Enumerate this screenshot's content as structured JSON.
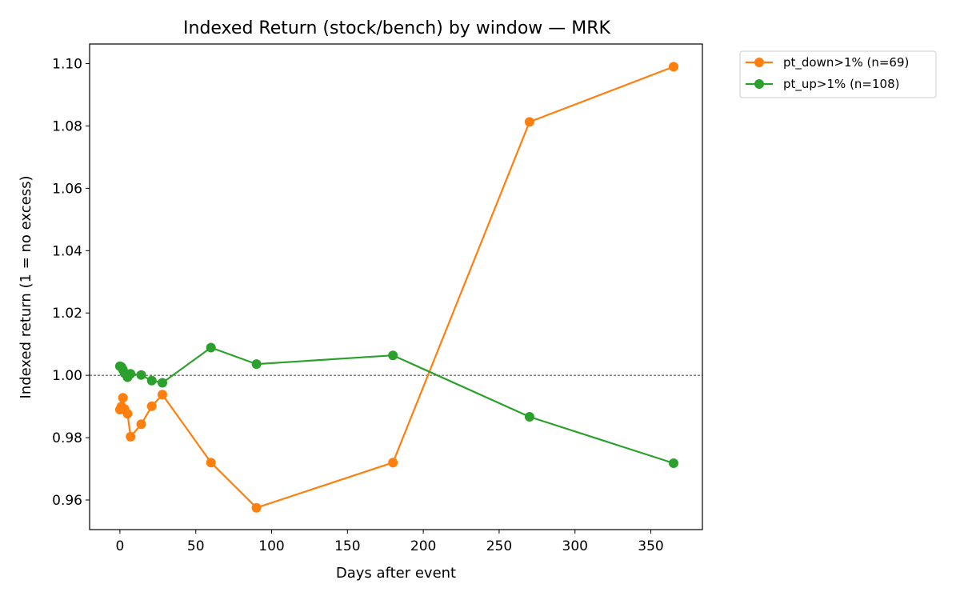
{
  "chart_data": {
    "type": "line",
    "title": "Indexed Return (stock/bench) by window — MRK",
    "xlabel": "Days after event",
    "ylabel": "Indexed return (1 = no excess)",
    "xlim": [
      -20,
      384
    ],
    "ylim": [
      0.9505,
      1.1063
    ],
    "xticks": [
      0,
      50,
      100,
      150,
      200,
      250,
      300,
      350
    ],
    "xtick_labels": [
      "0",
      "50",
      "100",
      "150",
      "200",
      "250",
      "300",
      "350"
    ],
    "yticks": [
      0.96,
      0.98,
      1.0,
      1.02,
      1.04,
      1.06,
      1.08,
      1.1
    ],
    "ytick_labels": [
      "0.96",
      "0.98",
      "1.00",
      "1.02",
      "1.04",
      "1.06",
      "1.08",
      "1.10"
    ],
    "reference_line": {
      "y": 1.0,
      "style": "dashed",
      "color": "#000000"
    },
    "grid": false,
    "legend_position": "outside-top-right",
    "series": [
      {
        "name": "pt_down>1% (n=69)",
        "color": "#ff7f0e",
        "x": [
          0,
          1,
          2,
          3,
          5,
          7,
          14,
          21,
          28,
          60,
          90,
          180,
          270,
          365
        ],
        "y": [
          0.989,
          0.99,
          0.9928,
          0.9892,
          0.9877,
          0.9803,
          0.9843,
          0.9901,
          0.9938,
          0.972,
          0.9575,
          0.972,
          1.0813,
          1.099
        ]
      },
      {
        "name": "pt_up>1% (n=108)",
        "color": "#2ca02c",
        "x": [
          0,
          1,
          2,
          3,
          5,
          7,
          14,
          21,
          28,
          60,
          90,
          180,
          270,
          365
        ],
        "y": [
          1.0029,
          1.0027,
          1.0018,
          1.0007,
          0.9994,
          1.0005,
          1.0001,
          0.9983,
          0.9976,
          1.0089,
          1.0036,
          1.0064,
          0.9867,
          0.9718
        ]
      }
    ]
  }
}
